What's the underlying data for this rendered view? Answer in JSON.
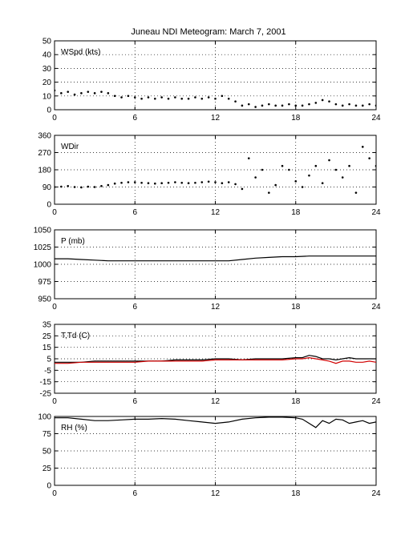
{
  "title": "Juneau NDI Meteogram:      March  7, 2001",
  "chart_data": [
    {
      "type": "scatter",
      "label": "WSpd (kts)",
      "xlim": [
        0,
        24
      ],
      "ylim": [
        0,
        50
      ],
      "xticks": [
        0,
        6,
        12,
        18,
        24
      ],
      "yticks": [
        0,
        10,
        20,
        30,
        40,
        50
      ],
      "grid": true,
      "series": [
        {
          "color": "#000000",
          "x": [
            0,
            0.5,
            1,
            1.5,
            2,
            2.5,
            3,
            3.5,
            4,
            4.5,
            5,
            5.5,
            6,
            6.5,
            7,
            7.5,
            8,
            8.5,
            9,
            9.5,
            10,
            10.5,
            11,
            11.5,
            12,
            12.5,
            13,
            13.5,
            14,
            14.5,
            15,
            15.5,
            16,
            16.5,
            17,
            17.5,
            18,
            18.5,
            19,
            19.5,
            20,
            20.5,
            21,
            21.5,
            22,
            22.5,
            23,
            23.5,
            24
          ],
          "values": [
            14,
            12,
            13,
            11,
            12,
            13,
            12,
            13,
            12,
            10,
            9,
            10,
            9,
            8,
            9,
            8,
            9,
            8,
            9,
            8,
            8,
            9,
            8,
            9,
            8,
            10,
            8,
            6,
            3,
            4,
            2,
            3,
            4,
            3,
            3,
            4,
            3,
            3,
            4,
            5,
            7,
            6,
            4,
            3,
            4,
            3,
            3,
            4,
            3
          ]
        }
      ]
    },
    {
      "type": "scatter",
      "label": "WDir",
      "xlim": [
        0,
        24
      ],
      "ylim": [
        0,
        360
      ],
      "xticks": [
        0,
        6,
        12,
        18,
        24
      ],
      "yticks": [
        0,
        90,
        180,
        270,
        360
      ],
      "grid": true,
      "series": [
        {
          "color": "#000000",
          "x": [
            0,
            0.5,
            1,
            1.5,
            2,
            2.5,
            3,
            3.5,
            4,
            4.5,
            5,
            5.5,
            6,
            6.5,
            7,
            7.5,
            8,
            8.5,
            9,
            9.5,
            10,
            10.5,
            11,
            11.5,
            12,
            12.5,
            13,
            13.5,
            14,
            14.5,
            15,
            15.5,
            16,
            16.5,
            17,
            17.5,
            18,
            18.5,
            19,
            19.5,
            20,
            20.5,
            21,
            21.5,
            22,
            22.5,
            23,
            23.5,
            24
          ],
          "values": [
            90,
            92,
            95,
            90,
            88,
            92,
            90,
            95,
            100,
            108,
            112,
            115,
            115,
            112,
            110,
            108,
            110,
            112,
            115,
            112,
            110,
            112,
            115,
            118,
            115,
            110,
            115,
            105,
            80,
            240,
            140,
            180,
            60,
            100,
            200,
            180,
            120,
            90,
            150,
            200,
            110,
            230,
            180,
            140,
            200,
            60,
            300,
            240,
            200
          ]
        }
      ]
    },
    {
      "type": "line",
      "label": "P (mb)",
      "xlim": [
        0,
        24
      ],
      "ylim": [
        950,
        1050
      ],
      "xticks": [
        0,
        6,
        12,
        18,
        24
      ],
      "yticks": [
        950,
        975,
        1000,
        1025,
        1050
      ],
      "grid": true,
      "series": [
        {
          "color": "#000000",
          "x": [
            0,
            1,
            2,
            3,
            4,
            5,
            6,
            7,
            8,
            9,
            10,
            11,
            12,
            13,
            14,
            15,
            16,
            17,
            18,
            19,
            20,
            21,
            22,
            23,
            24
          ],
          "values": [
            1008,
            1008,
            1007,
            1006,
            1005,
            1005,
            1005,
            1005,
            1005,
            1005,
            1005,
            1005,
            1005,
            1005,
            1007,
            1009,
            1010,
            1011,
            1011,
            1012,
            1012,
            1012,
            1012,
            1012,
            1012
          ]
        }
      ]
    },
    {
      "type": "line",
      "label": "T,Td (C)",
      "xlim": [
        0,
        24
      ],
      "ylim": [
        -25,
        35
      ],
      "xticks": [
        0,
        6,
        12,
        18,
        24
      ],
      "yticks": [
        -25,
        -15,
        -5,
        5,
        15,
        25,
        35
      ],
      "grid": true,
      "series": [
        {
          "color": "#000000",
          "x": [
            0,
            1,
            2,
            3,
            4,
            5,
            6,
            7,
            8,
            9,
            10,
            11,
            12,
            13,
            14,
            15,
            16,
            17,
            18,
            18.5,
            19,
            19.5,
            20,
            20.5,
            21,
            21.5,
            22,
            22.5,
            23,
            23.5,
            24
          ],
          "values": [
            2,
            2,
            2,
            3,
            3,
            3,
            3,
            3,
            3,
            4,
            4,
            4,
            5,
            5,
            4,
            5,
            5,
            5,
            6,
            6,
            8,
            7,
            5,
            5,
            4,
            5,
            6,
            5,
            5,
            5,
            5
          ]
        },
        {
          "color": "#d00000",
          "x": [
            0,
            1,
            2,
            3,
            4,
            5,
            6,
            7,
            8,
            9,
            10,
            11,
            12,
            13,
            14,
            15,
            16,
            17,
            18,
            18.5,
            19,
            19.5,
            20,
            20.5,
            21,
            21.5,
            22,
            22.5,
            23,
            23.5,
            24
          ],
          "values": [
            1,
            1,
            2,
            2,
            2,
            2,
            2,
            3,
            3,
            3,
            3,
            3,
            4,
            4,
            4,
            4,
            4,
            4,
            5,
            5,
            6,
            5,
            4,
            3,
            1,
            3,
            3,
            2,
            2,
            3,
            2
          ]
        }
      ]
    },
    {
      "type": "line",
      "label": "RH (%)",
      "xlim": [
        0,
        24
      ],
      "ylim": [
        0,
        100
      ],
      "xticks": [
        0,
        6,
        12,
        18,
        24
      ],
      "yticks": [
        0,
        25,
        50,
        75,
        100
      ],
      "grid": true,
      "series": [
        {
          "color": "#000000",
          "x": [
            0,
            1,
            2,
            3,
            4,
            5,
            6,
            7,
            8,
            9,
            10,
            11,
            12,
            13,
            14,
            15,
            16,
            17,
            18,
            18.5,
            19,
            19.5,
            20,
            20.5,
            21,
            21.5,
            22,
            22.5,
            23,
            23.5,
            24
          ],
          "values": [
            98,
            98,
            96,
            94,
            94,
            95,
            96,
            96,
            97,
            96,
            94,
            92,
            90,
            92,
            96,
            98,
            99,
            99,
            98,
            96,
            90,
            84,
            94,
            90,
            96,
            95,
            90,
            92,
            94,
            90,
            92
          ]
        }
      ]
    }
  ]
}
